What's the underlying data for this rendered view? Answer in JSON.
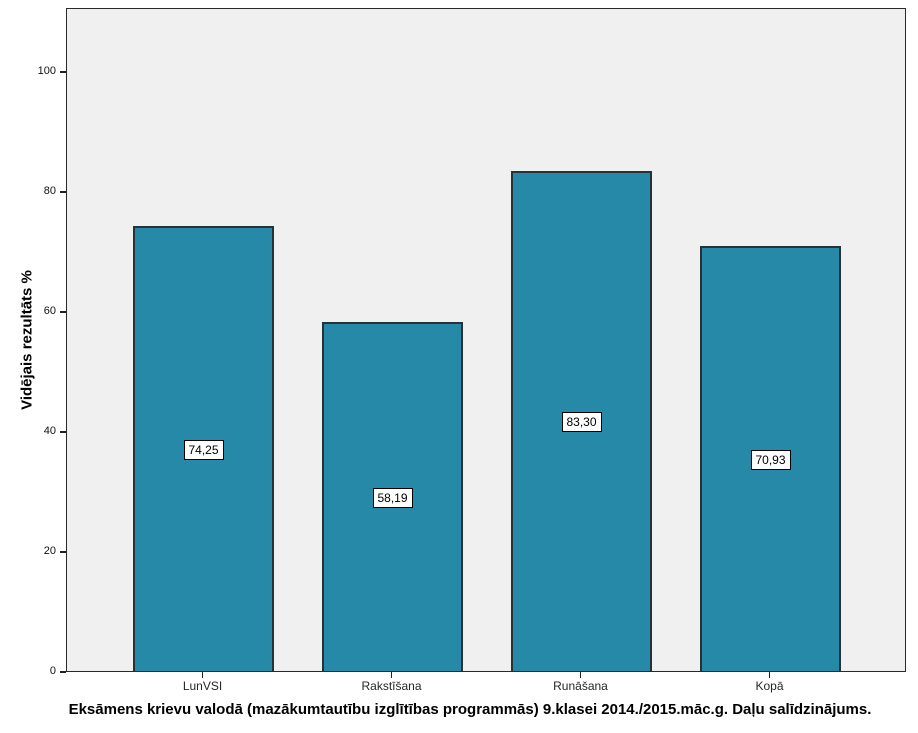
{
  "chart_data": {
    "type": "bar",
    "categories": [
      "LunVSI",
      "Rakstīšana",
      "Runāšana",
      "Kopā"
    ],
    "values": [
      74.25,
      58.19,
      83.3,
      70.93
    ],
    "value_labels": [
      "74,25",
      "58,19",
      "83,30",
      "70,93"
    ],
    "title": "Eksāmens krievu valodā (mazākumtautību izglītības programmās) 9.klasei 2014./2015.māc.g. Daļu salīdzinājums.",
    "xlabel": "",
    "ylabel": "Vidējais rezultāts %",
    "ylim": [
      0,
      110.7
    ],
    "yticks": [
      0,
      20,
      40,
      60,
      80,
      100
    ],
    "grid": false,
    "legend": "none",
    "bar_color": "#2789a8",
    "bar_border_color": "#273238",
    "plot_background": "#f0f0f0",
    "value_box_background": "#ffffff",
    "value_box_border": "#000000"
  }
}
